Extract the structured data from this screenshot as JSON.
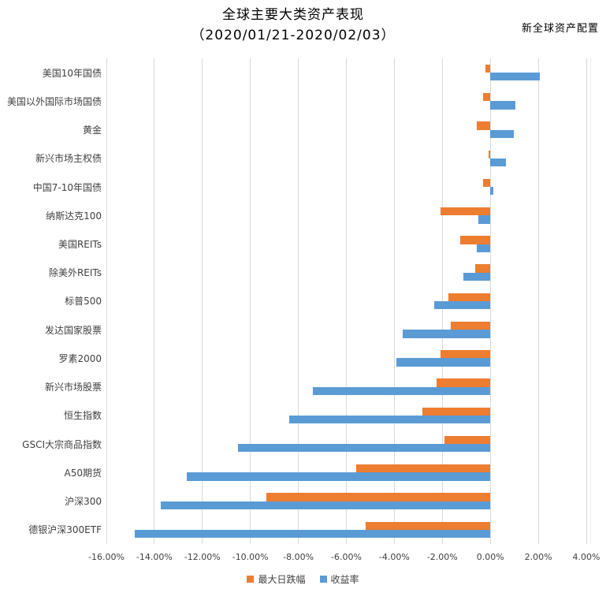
{
  "header": {
    "title_line1": "全球主要大类资产表现",
    "title_line2": "（2020/01/21-2020/02/03）",
    "brand": "新全球资产配置"
  },
  "chart_data": {
    "type": "bar",
    "orientation": "horizontal",
    "title": "全球主要大类资产表现",
    "subtitle": "（2020/01/21-2020/02/03）",
    "categories": [
      "美国10年国债",
      "美国以外国际市场国债",
      "黄金",
      "新兴市场主权债",
      "中国7-10年国债",
      "纳斯达克100",
      "美国REITs",
      "除美外REITs",
      "标普500",
      "发达国家股票",
      "罗素2000",
      "新兴市场股票",
      "恒生指数",
      "GSCI大宗商品指数",
      "A50期货",
      "沪深300",
      "德银沪深300ETF"
    ],
    "series": [
      {
        "name": "最大日跌幅",
        "color": "#ED7D31",
        "values": [
          -0.22,
          -0.31,
          -0.58,
          -0.07,
          -0.29,
          -2.06,
          -1.26,
          -0.62,
          -1.75,
          -1.64,
          -2.06,
          -2.24,
          -2.82,
          -1.91,
          -5.6,
          -9.32,
          -5.2
        ]
      },
      {
        "name": "收益率",
        "color": "#5B9BD5",
        "values": [
          2.06,
          1.06,
          0.97,
          0.64,
          0.11,
          -0.49,
          -0.55,
          -1.11,
          -2.35,
          -3.66,
          -3.93,
          -7.38,
          -8.39,
          -10.53,
          -12.64,
          -13.75,
          -14.81
        ]
      }
    ],
    "x_axis": {
      "min": -16,
      "max": 4,
      "step": 2,
      "unit": "%",
      "tick_labels": [
        "-16.00%",
        "-14.00%",
        "-12.00%",
        "-10.00%",
        "-8.00%",
        "-6.00%",
        "-4.00%",
        "-2.00%",
        "0.00%",
        "2.00%",
        "4.00%"
      ]
    },
    "grid": true,
    "gridline_color": "#D9D9D9",
    "legend_position": "bottom"
  }
}
